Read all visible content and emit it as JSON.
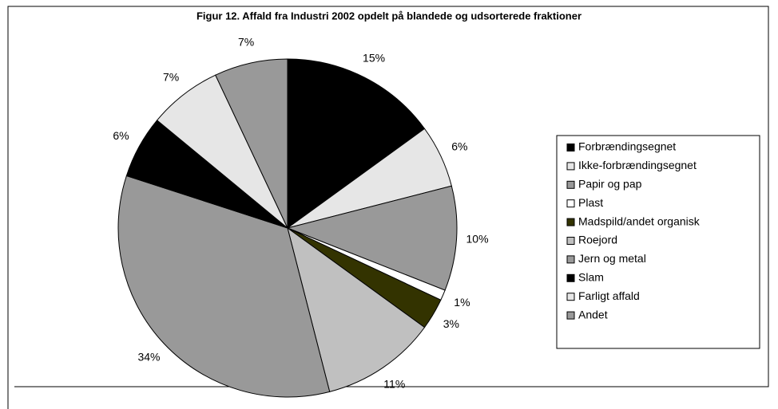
{
  "chart_data": {
    "type": "pie",
    "title": "Figur 12. Affald fra Industri 2002  opdelt på blandede og udsorterede fraktioner",
    "categories": [
      "Forbrændingsegnet",
      "Ikke-forbrændingsegnet",
      "Papir og pap",
      "Plast",
      "Madspild/andet organisk",
      "Roejord",
      "Jern og metal",
      "Slam",
      "Farligt affald",
      "Andet"
    ],
    "values": [
      15,
      6,
      10,
      1,
      3,
      11,
      34,
      6,
      7,
      7
    ],
    "value_labels": [
      "15%",
      "6%",
      "10%",
      "1%",
      "3%",
      "11%",
      "34%",
      "6%",
      "7%",
      "7%"
    ],
    "colors": [
      "#000000",
      "#e6e6e6",
      "#999999",
      "#ffffff",
      "#333300",
      "#c0c0c0",
      "#999999",
      "#000000",
      "#e6e6e6",
      "#999999"
    ],
    "legend": "right"
  }
}
